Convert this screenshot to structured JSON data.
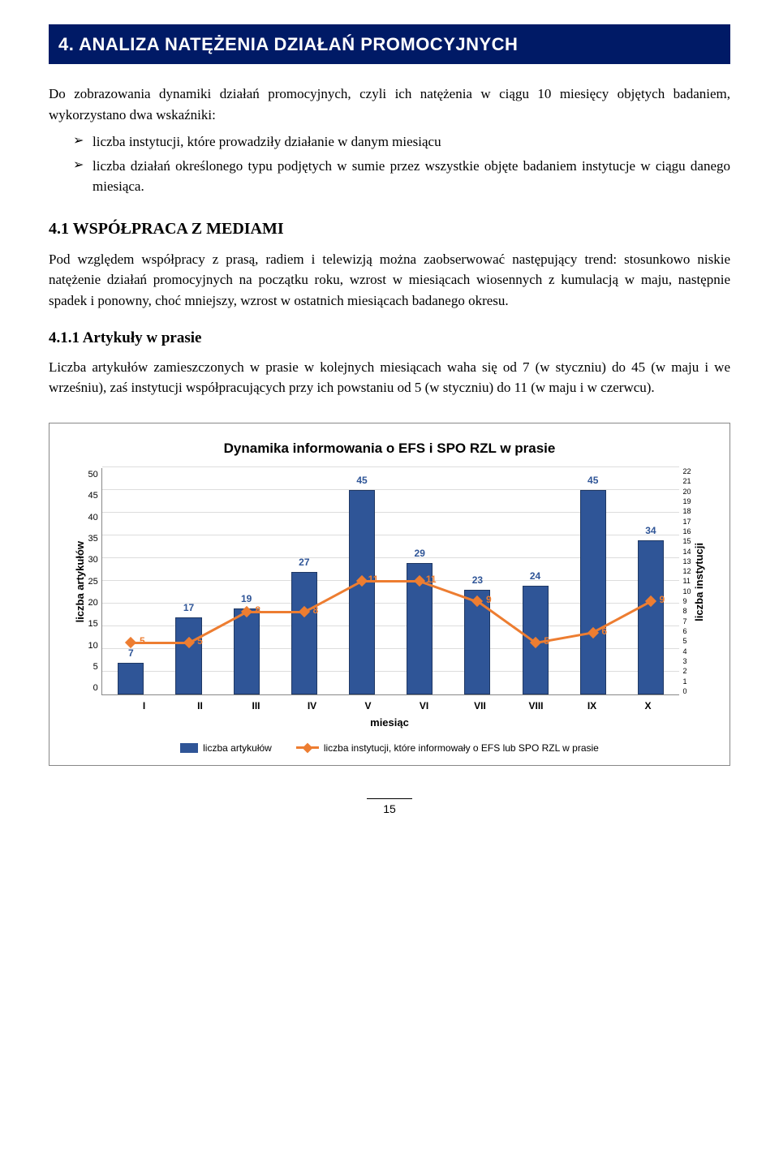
{
  "section": {
    "number": "4.",
    "title": "ANALIZA NATĘŻENIA DZIAŁAŃ PROMOCYJNYCH"
  },
  "intro": "Do zobrazowania dynamiki działań promocyjnych, czyli ich natężenia w ciągu 10 miesięcy objętych badaniem, wykorzystano dwa wskaźniki:",
  "bullets": [
    "liczba instytucji, które prowadziły działanie w danym miesiącu",
    "liczba działań określonego typu podjętych w sumie przez wszystkie objęte badaniem instytucje w ciągu danego miesiąca."
  ],
  "sub41": {
    "num": "4.1",
    "title": "WSPÓŁPRACA Z MEDIAMI",
    "text": "Pod względem współpracy z prasą, radiem i telewizją można zaobserwować następujący trend: stosunkowo niskie natężenie działań promocyjnych na początku roku, wzrost w miesiącach wiosennych z kumulacją w maju, następnie spadek i ponowny, choć mniejszy, wzrost w ostatnich miesiącach badanego okresu."
  },
  "sub411": {
    "num": "4.1.1",
    "title": "Artykuły w prasie",
    "text": "Liczba artykułów zamieszczonych w prasie w kolejnych miesiącach waha się od 7 (w styczniu) do 45 (w maju i we wrześniu), zaś instytucji współpracujących przy ich powstaniu od 5 (w styczniu) do 11 (w maju i w czerwcu)."
  },
  "chart": {
    "title": "Dynamika informowania o EFS i SPO RZL w prasie",
    "ylabel_left": "liczba artykułów",
    "ylabel_right": "liczba instytucji",
    "xlabel": "miesiąc",
    "categories": [
      "I",
      "II",
      "III",
      "IV",
      "V",
      "VI",
      "VII",
      "VIII",
      "IX",
      "X"
    ],
    "bar_values": [
      7,
      17,
      19,
      27,
      45,
      29,
      23,
      24,
      45,
      34
    ],
    "line_values": [
      5,
      5,
      8,
      8,
      11,
      11,
      9,
      5,
      6,
      9
    ],
    "y_left_ticks": [
      50,
      45,
      40,
      35,
      30,
      25,
      20,
      15,
      10,
      5,
      0
    ],
    "y_left_max": 50,
    "y_right_ticks": [
      22,
      21,
      20,
      19,
      18,
      17,
      16,
      15,
      14,
      13,
      12,
      11,
      10,
      9,
      8,
      7,
      6,
      5,
      4,
      3,
      2,
      1,
      0
    ],
    "y_right_max": 22,
    "bar_color": "#2f5597",
    "line_color": "#ed7d31",
    "bar_label_color": "#2f5597",
    "legend_bar": "liczba artykułów",
    "legend_line": "liczba instytucji, które informowały o EFS lub SPO RZL w prasie"
  },
  "page_number": "15"
}
